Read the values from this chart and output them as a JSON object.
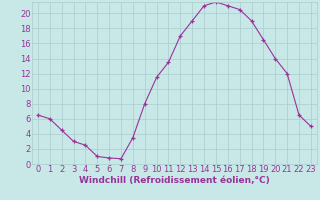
{
  "hours": [
    0,
    1,
    2,
    3,
    4,
    5,
    6,
    7,
    8,
    9,
    10,
    11,
    12,
    13,
    14,
    15,
    16,
    17,
    18,
    19,
    20,
    21,
    22,
    23
  ],
  "values": [
    6.5,
    6.0,
    4.5,
    3.0,
    2.5,
    1.0,
    0.8,
    0.7,
    3.5,
    8.0,
    11.5,
    13.5,
    17.0,
    19.0,
    21.0,
    21.5,
    21.0,
    20.5,
    19.0,
    16.5,
    14.0,
    12.0,
    6.5,
    5.0
  ],
  "line_color": "#993399",
  "marker": "+",
  "bg_color": "#c8e8e8",
  "grid_color": "#aacccc",
  "axis_color": "#993399",
  "xlabel": "Windchill (Refroidissement éolien,°C)",
  "ylim": [
    0,
    21
  ],
  "xlim": [
    -0.5,
    23.5
  ],
  "yticks": [
    0,
    2,
    4,
    6,
    8,
    10,
    12,
    14,
    16,
    18,
    20
  ],
  "xticks": [
    0,
    1,
    2,
    3,
    4,
    5,
    6,
    7,
    8,
    9,
    10,
    11,
    12,
    13,
    14,
    15,
    16,
    17,
    18,
    19,
    20,
    21,
    22,
    23
  ],
  "tick_label_color": "#993399",
  "xlabel_color": "#993399",
  "xlabel_fontsize": 6.5,
  "tick_fontsize": 6
}
